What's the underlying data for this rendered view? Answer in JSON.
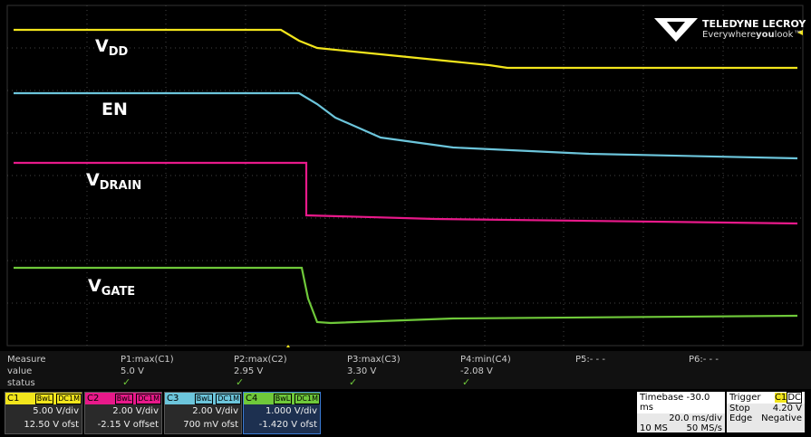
{
  "trace_labels": [
    {
      "main": "V",
      "sub": "DD"
    },
    {
      "main": "EN",
      "sub": ""
    },
    {
      "main": "V",
      "sub": "DRAIN"
    },
    {
      "main": "V",
      "sub": "GATE"
    }
  ],
  "logo": {
    "brand": "TELEDYNE LECROY",
    "tag_a": "Everywhere",
    "tag_b": "you",
    "tag_c": "look™"
  },
  "measure": {
    "header": [
      "Measure",
      "P1:max(C1)",
      "P2:max(C2)",
      "P3:max(C3)",
      "P4:min(C4)",
      "P5:- - -",
      "P6:- - -"
    ],
    "value": [
      "value",
      "5.0 V",
      "2.95 V",
      "3.30 V",
      "-2.08 V"
    ],
    "status": [
      "status"
    ]
  },
  "channels": [
    {
      "id": "C1",
      "bw": "BwL",
      "cpl": "DC1M",
      "vdiv": "5.00 V/div",
      "offset": "12.50 V ofst"
    },
    {
      "id": "C2",
      "bw": "BwL",
      "cpl": "DC1M",
      "vdiv": "2.00 V/div",
      "offset": "-2.15 V offset"
    },
    {
      "id": "C3",
      "bw": "BwL",
      "cpl": "DC1M",
      "vdiv": "2.00 V/div",
      "offset": "700 mV ofst"
    },
    {
      "id": "C4",
      "bw": "BwL",
      "cpl": "DC1M",
      "vdiv": "1.000 V/div",
      "offset": "-1.420 V ofst"
    }
  ],
  "timebase": {
    "title": "Timebase -30.0 ms",
    "rate": "20.0 ms/div",
    "samples": "10 MS",
    "srate": "50 MS/s"
  },
  "trigger": {
    "title": "Trigger",
    "src": "C1",
    "cpl": "DC",
    "mode": "Stop",
    "level": "4.20 V",
    "type": "Edge",
    "slope": "Negative"
  }
}
